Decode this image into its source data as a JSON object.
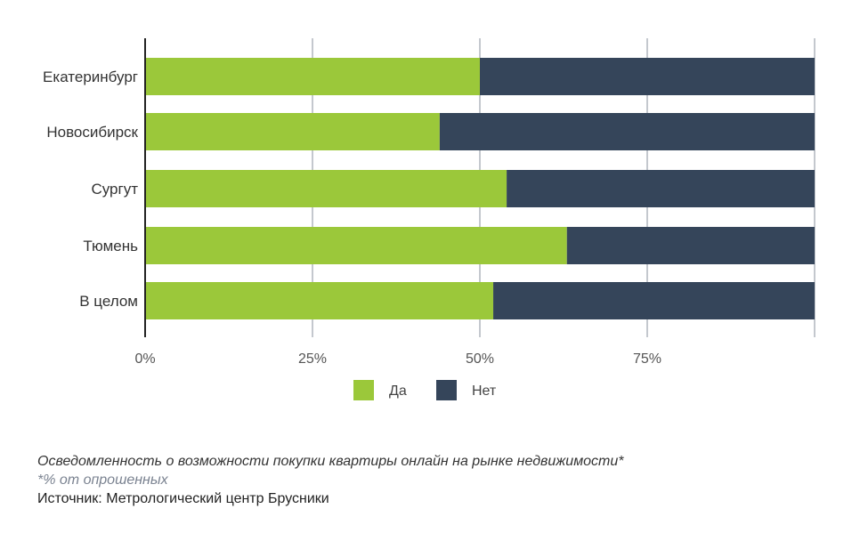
{
  "chart_data": {
    "type": "bar",
    "orientation": "horizontal",
    "stacked": true,
    "categories": [
      "Екатеринбург",
      "Новосибирск",
      "Сургут",
      "Тюмень",
      "В целом"
    ],
    "series": [
      {
        "name": "Да",
        "color": "#9bc83a",
        "values": [
          50,
          44,
          54,
          63,
          52
        ]
      },
      {
        "name": "Нет",
        "color": "#35455a",
        "values": [
          50,
          56,
          46,
          37,
          48
        ]
      }
    ],
    "xlim": [
      0,
      100
    ],
    "xticks": [
      "0%",
      "25%",
      "50%",
      "75%"
    ],
    "grid": true,
    "legend": "bottom"
  },
  "caption": {
    "title": "Осведомленность о возможности покупки квартиры онлайн на рынке недвижимости*",
    "note": "*% от опрошенных",
    "source": "Источник: Метрологический центр Брусники"
  }
}
